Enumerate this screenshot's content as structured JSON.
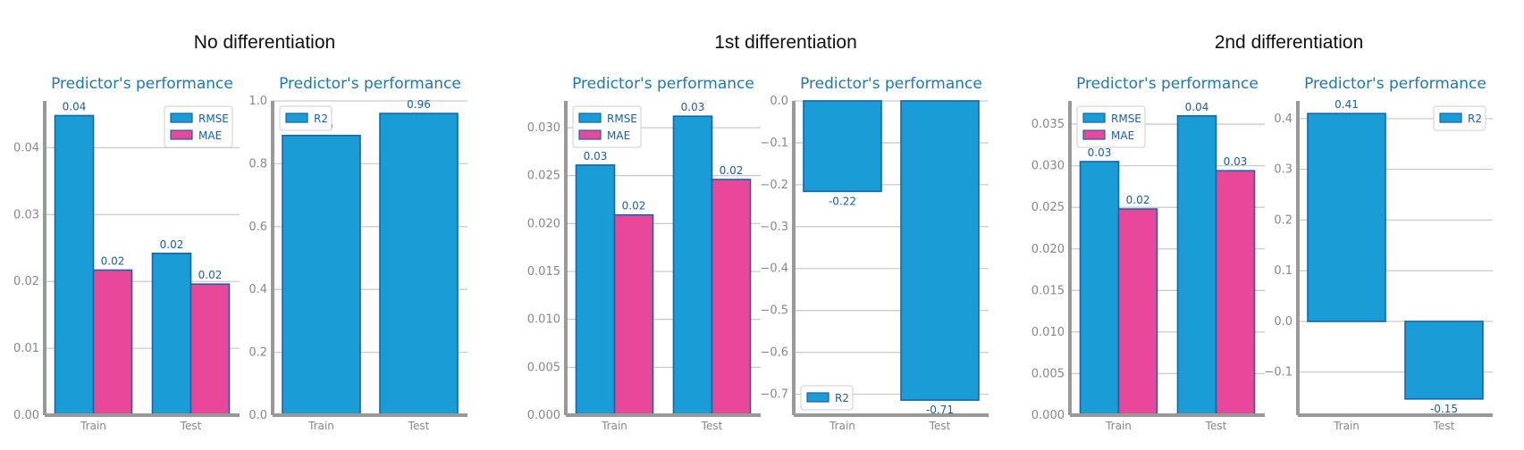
{
  "groups": [
    {
      "title": "No differentiation"
    },
    {
      "title": "1st differentiation"
    },
    {
      "title": "2nd differentiation"
    }
  ],
  "colors": {
    "rmse": "#1a9dd6",
    "mae": "#e8479a",
    "edge": "#1565a8",
    "grid": "#cccccc",
    "axis": "#999999",
    "tick": "#888888",
    "title": "#1f77b4"
  },
  "chart_data": [
    {
      "type": "bar",
      "group": 0,
      "title": "Predictor's performance",
      "categories": [
        "Train",
        "Test"
      ],
      "series": [
        {
          "name": "RMSE",
          "values": [
            0.0448,
            0.0242
          ],
          "labels": [
            "0.04",
            "0.02"
          ]
        },
        {
          "name": "MAE",
          "values": [
            0.0217,
            0.0196
          ],
          "labels": [
            "0.02",
            "0.02"
          ]
        }
      ],
      "ylim": [
        0,
        0.047
      ],
      "yticks": [
        0,
        0.01,
        0.02,
        0.03,
        0.04
      ],
      "ytick_labels": [
        "0.00",
        "0.01",
        "0.02",
        "0.03",
        "0.04"
      ],
      "legend": "top-right",
      "grid": true,
      "xlabel": "",
      "ylabel": ""
    },
    {
      "type": "bar",
      "group": 0,
      "title": "Predictor's performance",
      "categories": [
        "Train",
        "Test"
      ],
      "series": [
        {
          "name": "R2",
          "values": [
            0.89,
            0.96
          ],
          "labels": [
            "0.89",
            "0.96"
          ]
        }
      ],
      "ylim": [
        0,
        1.0
      ],
      "yticks": [
        0,
        0.2,
        0.4,
        0.6,
        0.8,
        1.0
      ],
      "ytick_labels": [
        "0.0",
        "0.2",
        "0.4",
        "0.6",
        "0.8",
        "1.0"
      ],
      "legend": "top-left",
      "grid": true,
      "xlabel": "",
      "ylabel": ""
    },
    {
      "type": "bar",
      "group": 1,
      "title": "Predictor's performance",
      "categories": [
        "Train",
        "Test"
      ],
      "series": [
        {
          "name": "RMSE",
          "values": [
            0.0261,
            0.0312
          ],
          "labels": [
            "0.03",
            "0.03"
          ]
        },
        {
          "name": "MAE",
          "values": [
            0.0209,
            0.0246
          ],
          "labels": [
            "0.02",
            "0.02"
          ]
        }
      ],
      "ylim": [
        0,
        0.0328
      ],
      "yticks": [
        0,
        0.005,
        0.01,
        0.015,
        0.02,
        0.025,
        0.03
      ],
      "ytick_labels": [
        "0.000",
        "0.005",
        "0.010",
        "0.015",
        "0.020",
        "0.025",
        "0.030"
      ],
      "legend": "top-left",
      "grid": true,
      "xlabel": "",
      "ylabel": ""
    },
    {
      "type": "bar",
      "group": 1,
      "title": "Predictor's performance",
      "categories": [
        "Train",
        "Test"
      ],
      "series": [
        {
          "name": "R2",
          "values": [
            -0.216,
            -0.714
          ],
          "labels": [
            "-0.22",
            "-0.71"
          ]
        }
      ],
      "ylim": [
        -0.75,
        0
      ],
      "yticks": [
        0,
        -0.1,
        -0.2,
        -0.3,
        -0.4,
        -0.5,
        -0.6,
        -0.7
      ],
      "ytick_labels": [
        "0.0",
        "−0.1",
        "−0.2",
        "−0.3",
        "−0.4",
        "−0.5",
        "−0.6",
        "−0.7"
      ],
      "legend": "bottom-left",
      "grid": true,
      "xlabel": "",
      "ylabel": ""
    },
    {
      "type": "bar",
      "group": 2,
      "title": "Predictor's performance",
      "categories": [
        "Train",
        "Test"
      ],
      "series": [
        {
          "name": "RMSE",
          "values": [
            0.0305,
            0.036
          ],
          "labels": [
            "0.03",
            "0.04"
          ]
        },
        {
          "name": "MAE",
          "values": [
            0.0248,
            0.0294
          ],
          "labels": [
            "0.02",
            "0.03"
          ]
        }
      ],
      "ylim": [
        0,
        0.0378
      ],
      "yticks": [
        0,
        0.005,
        0.01,
        0.015,
        0.02,
        0.025,
        0.03,
        0.035
      ],
      "ytick_labels": [
        "0.000",
        "0.005",
        "0.010",
        "0.015",
        "0.020",
        "0.025",
        "0.030",
        "0.035"
      ],
      "legend": "top-left",
      "grid": true,
      "xlabel": "",
      "ylabel": ""
    },
    {
      "type": "bar",
      "group": 2,
      "title": "Predictor's performance",
      "categories": [
        "Train",
        "Test"
      ],
      "series": [
        {
          "name": "R2",
          "values": [
            0.41,
            -0.153
          ],
          "labels": [
            "0.41",
            "-0.15"
          ]
        }
      ],
      "ylim": [
        -0.185,
        0.435
      ],
      "yticks": [
        0.4,
        0.3,
        0.2,
        0.1,
        0,
        -0.1
      ],
      "ytick_labels": [
        "0.4",
        "0.3",
        "0.2",
        "0.1",
        "0.0",
        "−0.1"
      ],
      "legend": "top-right",
      "grid": true,
      "xlabel": "",
      "ylabel": ""
    }
  ]
}
